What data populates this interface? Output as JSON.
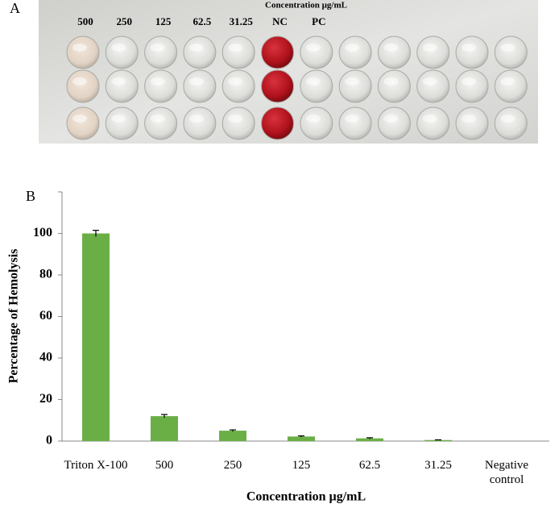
{
  "panel_a": {
    "label": "A",
    "title": "Concentration µg/mL",
    "columns": [
      "500",
      "250",
      "125",
      "62.5",
      "31.25",
      "NC",
      "PC"
    ]
  },
  "chart_data": {
    "type": "bar",
    "panel_label": "B",
    "x_label": "Concentration µg/mL",
    "y_label": "Percentage of Hemolysis",
    "categories": [
      "Triton X-100",
      "500",
      "250",
      "125",
      "62.5",
      "31.25",
      "Negative control"
    ],
    "values": [
      100,
      12,
      5,
      2.2,
      1.3,
      0.5,
      0
    ],
    "errors": [
      1.5,
      0.8,
      0.4,
      0.3,
      0.3,
      0.1,
      0
    ],
    "color": "#6aaf46",
    "ylim": [
      0,
      120
    ],
    "yticks": [
      0,
      20,
      40,
      60,
      80,
      100
    ],
    "grid": false
  }
}
